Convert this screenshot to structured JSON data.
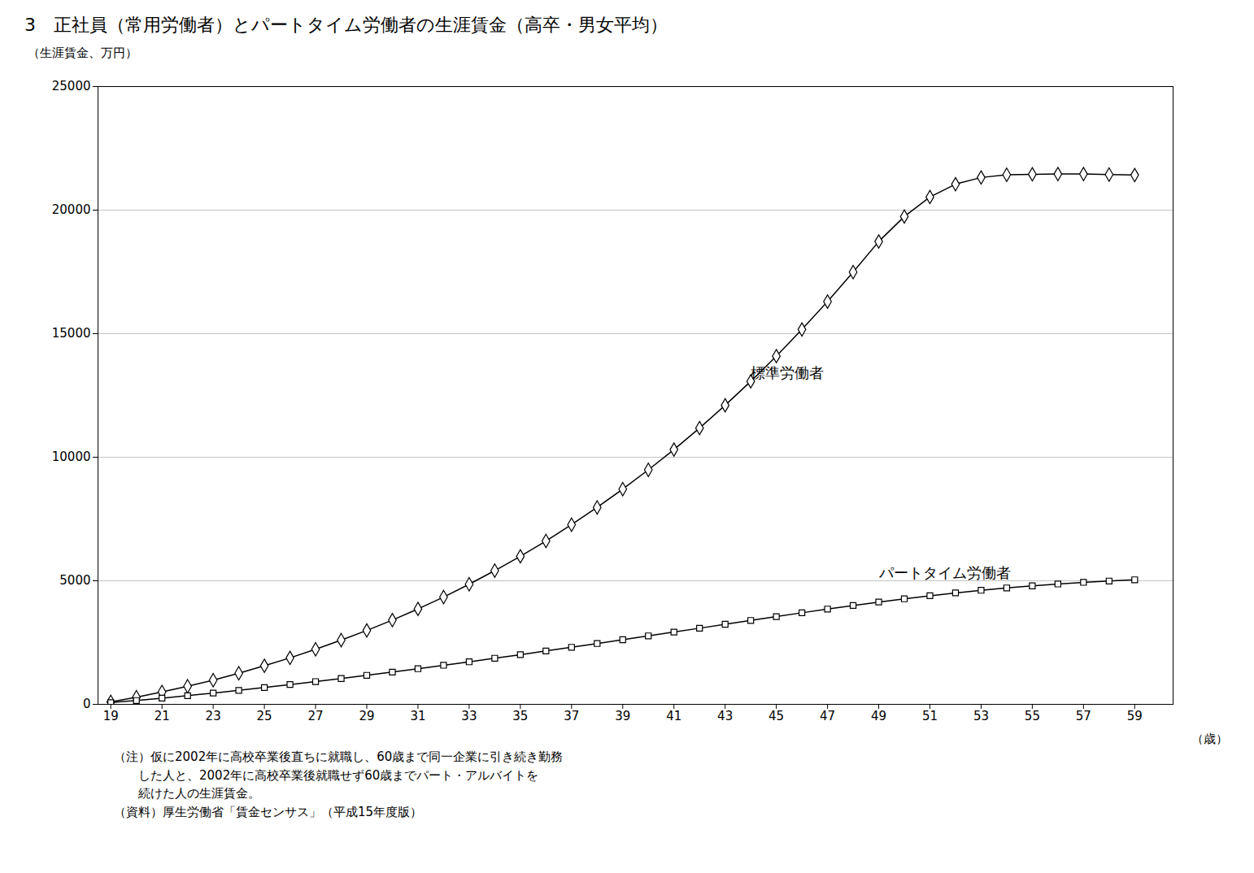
{
  "chart_data": {
    "type": "line",
    "title": "3　正社員（常用労働者）とパートタイム労働者の生涯賃金（高卒・男女平均）",
    "ylabel": "（生涯賃金、万円）",
    "xlabel": "（歳）",
    "x": [
      19,
      20,
      21,
      22,
      23,
      24,
      25,
      26,
      27,
      28,
      29,
      30,
      31,
      32,
      33,
      34,
      35,
      36,
      37,
      38,
      39,
      40,
      41,
      42,
      43,
      44,
      45,
      46,
      47,
      48,
      49,
      50,
      51,
      52,
      53,
      54,
      55,
      56,
      57,
      58,
      59
    ],
    "series": [
      {
        "name": "標準労働者",
        "color": "#000000",
        "marker": "diamond",
        "values": [
          100,
          290,
          500,
          730,
          980,
          1260,
          1560,
          1880,
          2230,
          2600,
          2990,
          3410,
          3860,
          4340,
          4860,
          5410,
          5990,
          6610,
          7270,
          7970,
          8710,
          9490,
          10310,
          11180,
          12100,
          13070,
          14090,
          15170,
          16300,
          17490,
          18730,
          19740,
          20530,
          21050,
          21320,
          21430,
          21450,
          21460,
          21460,
          21440,
          21420
        ]
      },
      {
        "name": "パートタイム労働者",
        "color": "#000000",
        "marker": "square",
        "values": [
          70,
          155,
          250,
          350,
          455,
          565,
          680,
          800,
          920,
          1045,
          1175,
          1305,
          1440,
          1580,
          1720,
          1865,
          2010,
          2160,
          2310,
          2460,
          2615,
          2770,
          2925,
          3080,
          3240,
          3395,
          3550,
          3705,
          3855,
          4000,
          4140,
          4270,
          4395,
          4510,
          4615,
          4710,
          4795,
          4870,
          4935,
          4990,
          5040
        ]
      }
    ],
    "annotations": [
      {
        "text": "標準労働者",
        "x": 44,
        "y": 13200
      },
      {
        "text": "パートタイム労働者",
        "x": 49,
        "y": 5100
      }
    ],
    "notes": [
      "（注）仮に2002年に高校卒業後直ちに就職し、60歳まで同一企業に引き続き勤務",
      "　　した人と、2002年に高校卒業後就職せず60歳までパート・アルバイトを",
      "　　続けた人の生涯賃金。",
      "（資料）厚生労働省「賃金センサス」（平成15年度版）"
    ],
    "xlim": [
      18.5,
      60.5
    ],
    "xticks": [
      19,
      21,
      23,
      25,
      27,
      29,
      31,
      33,
      35,
      37,
      39,
      41,
      43,
      45,
      47,
      49,
      51,
      53,
      55,
      57,
      59
    ],
    "ylim": [
      0,
      25000
    ],
    "yticks": [
      0,
      5000,
      10000,
      15000,
      20000,
      25000
    ],
    "grid": true
  }
}
